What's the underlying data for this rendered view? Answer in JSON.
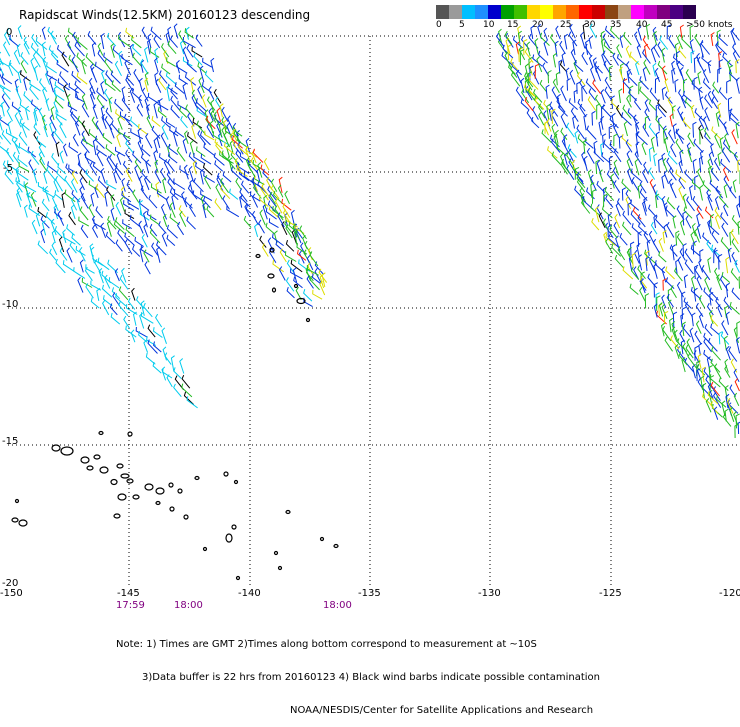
{
  "title": "Rapidscat Winds(12.5KM) 20160123 descending",
  "colorbar": {
    "labels": [
      "0",
      "5",
      "10",
      "15",
      "20",
      "25",
      "30",
      "35",
      "40",
      "45",
      ">50 knots"
    ],
    "colors": [
      "#555555",
      "#9a9a9a",
      "#00bfff",
      "#1e90ff",
      "#0000cd",
      "#00a000",
      "#40c000",
      "#ffd700",
      "#ffff00",
      "#ffa500",
      "#ff6600",
      "#ff0000",
      "#cc0000",
      "#8b4513",
      "#c0a080",
      "#ff00ff",
      "#c000c0",
      "#800080",
      "#4b0082",
      "#2a0050"
    ]
  },
  "map": {
    "lat_labels": [
      "0",
      "-5",
      "-10",
      "-15",
      "-20"
    ],
    "lon_labels": [
      "-150",
      "-145",
      "-140",
      "-135",
      "-130",
      "-125",
      "-120"
    ],
    "grid": "dotted",
    "barb_colors": {
      "light_blue": "#00ccee",
      "blue": "#0033dd",
      "green": "#22bb22",
      "yellow": "#dddd00",
      "red": "#ff2200",
      "black": "#000000"
    }
  },
  "times": [
    "17:59",
    "18:00",
    "18:00"
  ],
  "notes": [
    "Note: 1) Times are GMT 2)Times along bottom correspond to measurement at ~10S",
    "3)Data buffer is 22 hrs from 20160123 4) Black wind barbs indicate possible contamination",
    "NOAA/NESDIS/Center for Satellite Applications and Research"
  ]
}
